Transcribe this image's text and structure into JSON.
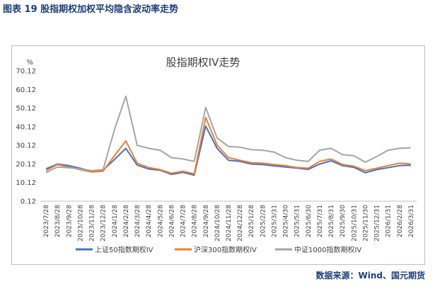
{
  "figure": {
    "caption": "图表 19  股指期权加权平均隐含波动率走势",
    "source": "数据来源：Wind、国元期货"
  },
  "colors": {
    "sse50": "#4472c4",
    "csi300": "#ed7d31",
    "csi1000": "#a5a5a5",
    "axis": "#bfbfbf",
    "text": "#404040"
  },
  "chart_data": {
    "type": "line",
    "title": "股指期权IV走势",
    "ylabel": "%",
    "xlabel": "",
    "ylim": [
      0.12,
      70.12
    ],
    "yticks": [
      "70.12",
      "60.12",
      "50.12",
      "40.12",
      "30.12",
      "20.12",
      "10.12",
      "0.12"
    ],
    "ytick_values": [
      70.12,
      60.12,
      50.12,
      40.12,
      30.12,
      20.12,
      10.12,
      0.12
    ],
    "grid": false,
    "legend_position": "bottom",
    "x": [
      "2023/7/28",
      "2023/8/28",
      "2023/9/28",
      "2023/10/28",
      "2023/11/28",
      "2023/12/28",
      "2024/1/28",
      "2024/2/28",
      "2024/3/28",
      "2024/4/28",
      "2024/5/28",
      "2024/6/28",
      "2024/7/28",
      "2024/8/28",
      "2024/9/28",
      "2024/10/28",
      "2024/11/28",
      "2024/12/28",
      "2025/1/28",
      "2025/2/28",
      "2025/3/31",
      "2025/4/30",
      "2025/5/31",
      "2025/6/30",
      "2025/7/31",
      "2025/8/31",
      "2025/9/30",
      "2025/10/31",
      "2025/11/30",
      "2025/12/31",
      "2026/1/31",
      "2026/2/28",
      "2026/3/31"
    ],
    "series": [
      {
        "name": "上证50指数期权IV",
        "values": [
          17.5,
          20.1,
          19.2,
          17.8,
          16.2,
          16.8,
          22.5,
          28.5,
          19.5,
          17.4,
          16.8,
          14.5,
          15.6,
          14.1,
          40.5,
          28.5,
          22.1,
          21.5,
          20.1,
          19.8,
          19.1,
          18.5,
          17.9,
          17.2,
          20.1,
          21.8,
          19.2,
          18.3,
          15.4,
          17.1,
          18.1,
          19.2,
          19.4
        ]
      },
      {
        "name": "沪深300指数期权IV",
        "values": [
          16.5,
          19.8,
          18.5,
          17.1,
          15.8,
          16.2,
          24.5,
          32.5,
          20.5,
          18.2,
          17.1,
          15.1,
          16.2,
          14.8,
          45.1,
          30.2,
          23.5,
          22.1,
          20.8,
          20.5,
          19.8,
          19.2,
          18.2,
          17.8,
          21.5,
          22.8,
          19.8,
          18.9,
          16.5,
          17.8,
          19.2,
          20.5,
          20.1
        ]
      },
      {
        "name": "中证1000指数期权IV",
        "values": [
          15.5,
          18.5,
          18.1,
          17.5,
          16.5,
          17.1,
          38.5,
          56.5,
          30.1,
          28.5,
          27.5,
          23.5,
          22.8,
          21.5,
          50.5,
          34.1,
          29.5,
          29.1,
          27.8,
          27.5,
          26.5,
          23.5,
          22.1,
          21.5,
          27.5,
          28.5,
          25.1,
          24.5,
          21.1,
          24.1,
          27.5,
          28.5,
          28.8
        ]
      }
    ]
  }
}
